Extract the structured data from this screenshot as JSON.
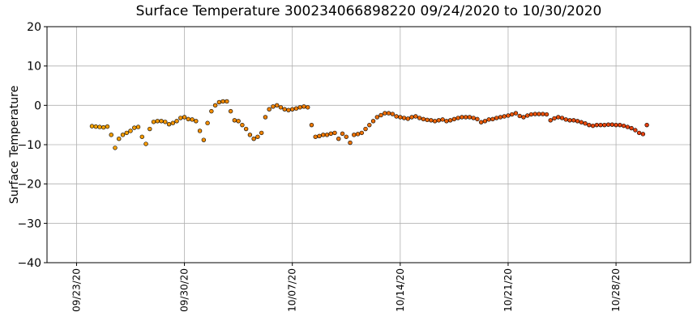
{
  "chart_data": {
    "type": "scatter",
    "title": "Surface Temperature 300234066898220  09/24/2020 to 10/30/2020",
    "ylabel": "Surface Temperature",
    "xlim": [
      "2020-09-21T02:00",
      "2020-11-01T20:00"
    ],
    "xticks": [
      {
        "value": "2020-09-23T00:00",
        "label": "09/23/20"
      },
      {
        "value": "2020-09-30T00:00",
        "label": "09/30/20"
      },
      {
        "value": "2020-10-07T00:00",
        "label": "10/07/20"
      },
      {
        "value": "2020-10-14T00:00",
        "label": "10/14/20"
      },
      {
        "value": "2020-10-21T00:00",
        "label": "10/21/20"
      },
      {
        "value": "2020-10-28T00:00",
        "label": "10/28/20"
      }
    ],
    "ylim": [
      -40,
      20
    ],
    "yticks": [
      {
        "value": -40,
        "label": "−40"
      },
      {
        "value": -30,
        "label": "−30"
      },
      {
        "value": -20,
        "label": "−20"
      },
      {
        "value": -10,
        "label": "−10"
      },
      0,
      10,
      20
    ],
    "grid": true,
    "colormap": [
      "#f5a300",
      "#e63e0e"
    ],
    "x": [
      "2020-09-24T00:00",
      "2020-09-24T06:00",
      "2020-09-24T12:00",
      "2020-09-24T18:00",
      "2020-09-25T00:00",
      "2020-09-25T06:00",
      "2020-09-25T12:00",
      "2020-09-25T18:00",
      "2020-09-26T00:00",
      "2020-09-26T06:00",
      "2020-09-26T12:00",
      "2020-09-26T18:00",
      "2020-09-27T00:00",
      "2020-09-27T06:00",
      "2020-09-27T12:00",
      "2020-09-27T18:00",
      "2020-09-28T00:00",
      "2020-09-28T06:00",
      "2020-09-28T12:00",
      "2020-09-28T18:00",
      "2020-09-29T00:00",
      "2020-09-29T06:00",
      "2020-09-29T12:00",
      "2020-09-29T18:00",
      "2020-09-30T00:00",
      "2020-09-30T06:00",
      "2020-09-30T12:00",
      "2020-09-30T18:00",
      "2020-10-01T00:00",
      "2020-10-01T06:00",
      "2020-10-01T12:00",
      "2020-10-01T18:00",
      "2020-10-02T00:00",
      "2020-10-02T06:00",
      "2020-10-02T12:00",
      "2020-10-02T18:00",
      "2020-10-03T00:00",
      "2020-10-03T06:00",
      "2020-10-03T12:00",
      "2020-10-03T18:00",
      "2020-10-04T00:00",
      "2020-10-04T06:00",
      "2020-10-04T12:00",
      "2020-10-04T18:00",
      "2020-10-05T00:00",
      "2020-10-05T06:00",
      "2020-10-05T12:00",
      "2020-10-05T18:00",
      "2020-10-06T00:00",
      "2020-10-06T06:00",
      "2020-10-06T12:00",
      "2020-10-06T18:00",
      "2020-10-07T00:00",
      "2020-10-07T06:00",
      "2020-10-07T12:00",
      "2020-10-07T18:00",
      "2020-10-08T00:00",
      "2020-10-08T06:00",
      "2020-10-08T12:00",
      "2020-10-08T18:00",
      "2020-10-09T00:00",
      "2020-10-09T06:00",
      "2020-10-09T12:00",
      "2020-10-09T18:00",
      "2020-10-10T00:00",
      "2020-10-10T06:00",
      "2020-10-10T12:00",
      "2020-10-10T18:00",
      "2020-10-11T00:00",
      "2020-10-11T06:00",
      "2020-10-11T12:00",
      "2020-10-11T18:00",
      "2020-10-12T00:00",
      "2020-10-12T06:00",
      "2020-10-12T12:00",
      "2020-10-12T18:00",
      "2020-10-13T00:00",
      "2020-10-13T06:00",
      "2020-10-13T12:00",
      "2020-10-13T18:00",
      "2020-10-14T00:00",
      "2020-10-14T06:00",
      "2020-10-14T12:00",
      "2020-10-14T18:00",
      "2020-10-15T00:00",
      "2020-10-15T06:00",
      "2020-10-15T12:00",
      "2020-10-15T18:00",
      "2020-10-16T00:00",
      "2020-10-16T06:00",
      "2020-10-16T12:00",
      "2020-10-16T18:00",
      "2020-10-17T00:00",
      "2020-10-17T06:00",
      "2020-10-17T12:00",
      "2020-10-17T18:00",
      "2020-10-18T00:00",
      "2020-10-18T06:00",
      "2020-10-18T12:00",
      "2020-10-18T18:00",
      "2020-10-19T00:00",
      "2020-10-19T06:00",
      "2020-10-19T12:00",
      "2020-10-19T18:00",
      "2020-10-20T00:00",
      "2020-10-20T06:00",
      "2020-10-20T12:00",
      "2020-10-20T18:00",
      "2020-10-21T00:00",
      "2020-10-21T06:00",
      "2020-10-21T12:00",
      "2020-10-21T18:00",
      "2020-10-22T00:00",
      "2020-10-22T06:00",
      "2020-10-22T12:00",
      "2020-10-22T18:00",
      "2020-10-23T00:00",
      "2020-10-23T06:00",
      "2020-10-23T12:00",
      "2020-10-23T18:00",
      "2020-10-24T00:00",
      "2020-10-24T06:00",
      "2020-10-24T12:00",
      "2020-10-24T18:00",
      "2020-10-25T00:00",
      "2020-10-25T06:00",
      "2020-10-25T12:00",
      "2020-10-25T18:00",
      "2020-10-26T00:00",
      "2020-10-26T06:00",
      "2020-10-26T12:00",
      "2020-10-26T18:00",
      "2020-10-27T00:00",
      "2020-10-27T06:00",
      "2020-10-27T12:00",
      "2020-10-27T18:00",
      "2020-10-28T00:00",
      "2020-10-28T06:00",
      "2020-10-28T12:00",
      "2020-10-28T18:00",
      "2020-10-29T00:00",
      "2020-10-29T06:00",
      "2020-10-29T12:00",
      "2020-10-29T18:00",
      "2020-10-30T00:00"
    ],
    "values": [
      -5.3,
      -5.4,
      -5.5,
      -5.6,
      -5.4,
      -7.5,
      -10.8,
      -8.5,
      -7.5,
      -7,
      -6.5,
      -5.7,
      -5.5,
      -8,
      -9.8,
      -6,
      -4.2,
      -4,
      -4,
      -4.2,
      -4.8,
      -4.5,
      -4,
      -3.2,
      -3,
      -3.5,
      -3.6,
      -4,
      -6.5,
      -8.8,
      -4.5,
      -1.5,
      0,
      0.8,
      1,
      1,
      -1.5,
      -3.8,
      -4,
      -5,
      -6,
      -7.5,
      -8.5,
      -8,
      -7,
      -3,
      -1,
      -0.3,
      0,
      -0.5,
      -1,
      -1.2,
      -1,
      -0.8,
      -0.5,
      -0.3,
      -0.5,
      -5,
      -8,
      -7.8,
      -7.5,
      -7.5,
      -7.2,
      -7,
      -8.5,
      -7.2,
      -8,
      -9.5,
      -7.5,
      -7.3,
      -7,
      -6,
      -5,
      -4,
      -3,
      -2.5,
      -2,
      -2,
      -2.2,
      -2.8,
      -3,
      -3.2,
      -3.4,
      -3,
      -2.8,
      -3.2,
      -3.5,
      -3.7,
      -3.8,
      -4,
      -3.8,
      -3.6,
      -4,
      -3.8,
      -3.5,
      -3.2,
      -3,
      -3,
      -3,
      -3.2,
      -3.5,
      -4.3,
      -4,
      -3.6,
      -3.5,
      -3.2,
      -3,
      -2.8,
      -2.6,
      -2.3,
      -2,
      -2.7,
      -3,
      -2.6,
      -2.3,
      -2.2,
      -2.2,
      -2.2,
      -2.3,
      -3.8,
      -3.3,
      -3,
      -3.2,
      -3.6,
      -3.8,
      -3.8,
      -4,
      -4.3,
      -4.6,
      -5,
      -5.2,
      -5,
      -5,
      -5,
      -4.9,
      -4.9,
      -5,
      -5,
      -5.2,
      -5.5,
      -5.8,
      -6.3,
      -7,
      -7.3,
      -5
    ]
  }
}
